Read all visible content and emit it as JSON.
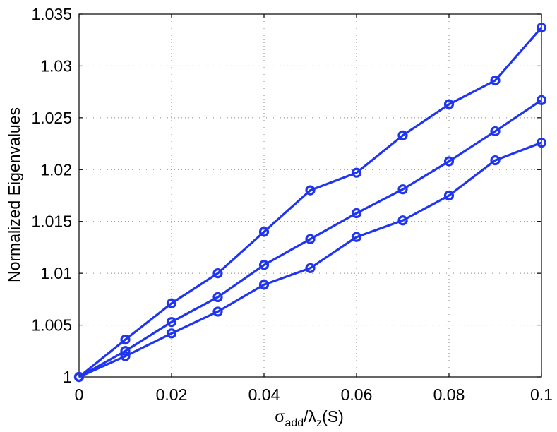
{
  "colors": {
    "series": "#1f35f0",
    "grid": "#8a8a8a",
    "axis": "#000000"
  },
  "chart_data": {
    "type": "line",
    "title": "",
    "xlabel": {
      "base": "σ",
      "sub1": "add",
      "mid": "/λ",
      "sub2": "z",
      "tail": "(S)"
    },
    "ylabel": "Normalized Eigenvalues",
    "xlim": [
      0,
      0.1
    ],
    "ylim": [
      1,
      1.035
    ],
    "grid": true,
    "marker": "circle",
    "x": [
      0,
      0.01,
      0.02,
      0.03,
      0.04,
      0.05,
      0.06,
      0.07,
      0.08,
      0.09,
      0.1
    ],
    "xticks": [
      {
        "v": 0,
        "label": "0"
      },
      {
        "v": 0.02,
        "label": "0.02"
      },
      {
        "v": 0.04,
        "label": "0.04"
      },
      {
        "v": 0.06,
        "label": "0.06"
      },
      {
        "v": 0.08,
        "label": "0.08"
      },
      {
        "v": 0.1,
        "label": "0.1"
      }
    ],
    "xgrid": [
      0.02,
      0.04,
      0.06,
      0.08
    ],
    "yticks": [
      {
        "v": 1,
        "label": "1"
      },
      {
        "v": 1.005,
        "label": "1.005"
      },
      {
        "v": 1.01,
        "label": "1.01"
      },
      {
        "v": 1.015,
        "label": "1.015"
      },
      {
        "v": 1.02,
        "label": "1.02"
      },
      {
        "v": 1.025,
        "label": "1.025"
      },
      {
        "v": 1.03,
        "label": "1.03"
      },
      {
        "v": 1.035,
        "label": "1.035"
      }
    ],
    "ygrid": [
      1.005,
      1.01,
      1.015,
      1.02,
      1.025,
      1.03
    ],
    "series": [
      {
        "values": [
          1.0,
          1.0036,
          1.0071,
          1.01,
          1.014,
          1.018,
          1.0197,
          1.0233,
          1.0263,
          1.0286,
          1.0337
        ]
      },
      {
        "values": [
          1.0,
          1.0025,
          1.0053,
          1.0077,
          1.0108,
          1.0133,
          1.0158,
          1.0181,
          1.0208,
          1.0237,
          1.0267
        ]
      },
      {
        "values": [
          1.0,
          1.002,
          1.0042,
          1.0063,
          1.0089,
          1.0105,
          1.0135,
          1.0151,
          1.0175,
          1.0209,
          1.0226
        ]
      }
    ]
  }
}
